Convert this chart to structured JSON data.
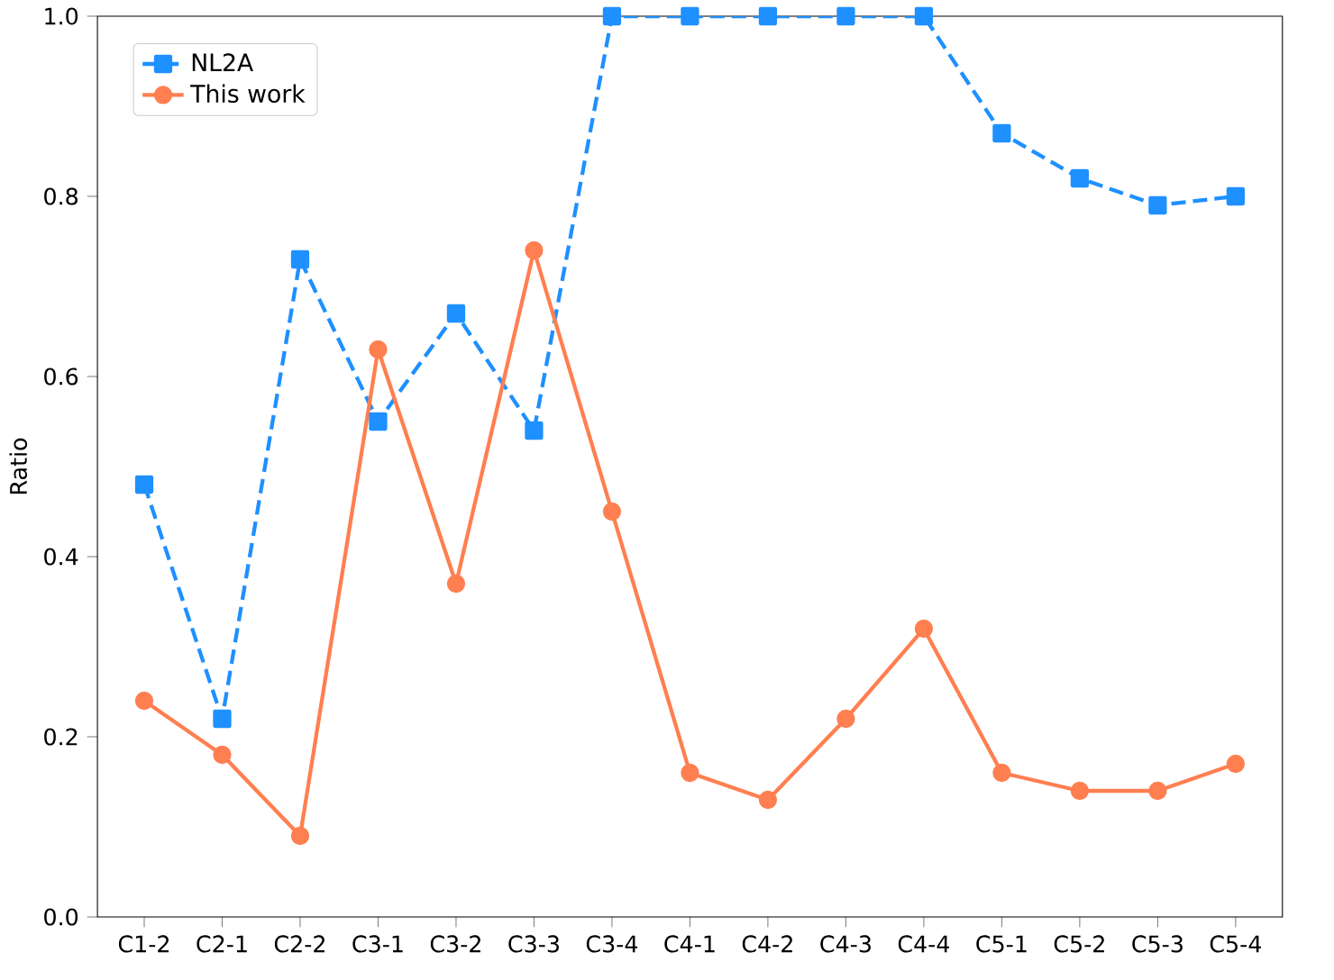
{
  "chart_data": {
    "type": "line",
    "ylabel": "Ratio",
    "categories": [
      "C1-2",
      "C2-1",
      "C2-2",
      "C3-1",
      "C3-2",
      "C3-3",
      "C3-4",
      "C4-1",
      "C4-2",
      "C4-3",
      "C4-4",
      "C5-1",
      "C5-2",
      "C5-3",
      "C5-4"
    ],
    "series": [
      {
        "name": "NL2A",
        "color": "#1e90ff",
        "marker": "square",
        "line_style": "dashed",
        "values": [
          0.48,
          0.22,
          0.73,
          0.55,
          0.67,
          0.54,
          1.0,
          1.0,
          1.0,
          1.0,
          1.0,
          0.87,
          0.82,
          0.79,
          0.8
        ]
      },
      {
        "name": "This work",
        "color": "#ff7f50",
        "marker": "circle",
        "line_style": "solid",
        "values": [
          0.24,
          0.18,
          0.09,
          0.63,
          0.37,
          0.74,
          0.45,
          0.16,
          0.13,
          0.22,
          0.32,
          0.16,
          0.14,
          0.14,
          0.17
        ]
      }
    ],
    "ylim": [
      0,
      1
    ],
    "yticks": [
      {
        "value": 0,
        "label": "0.0"
      },
      {
        "value": 0.2,
        "label": "0.2"
      },
      {
        "value": 0.4,
        "label": "0.4"
      },
      {
        "value": 0.6,
        "label": "0.6"
      },
      {
        "value": 0.8,
        "label": "0.8"
      },
      {
        "value": 1,
        "label": "1.0"
      }
    ],
    "legend": "top left",
    "grid": false
  }
}
